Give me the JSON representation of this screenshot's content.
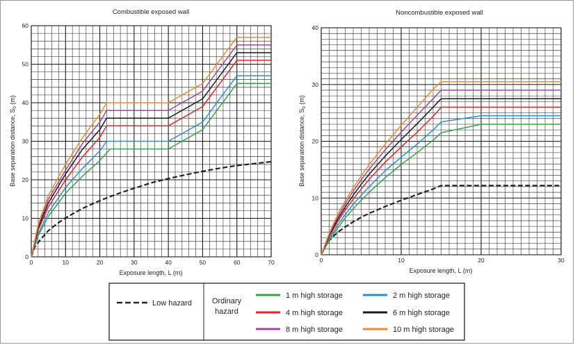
{
  "colors": {
    "green": "#3aa04a",
    "blue": "#2a8fd0",
    "red": "#e0262b",
    "black": "#1a1a1a",
    "purple": "#9b4a9b",
    "orange": "#f08a2c",
    "low": "#222222",
    "grid": "#1a1a1a"
  },
  "chart_data": [
    {
      "type": "line",
      "title": "Combustible exposed wall",
      "xlabel": "Exposure length, L (m)",
      "ylabel_main": "Base separation distance, S",
      "ylabel_sub": "0",
      "ylabel_tail": " (m)",
      "xlim": [
        0,
        70
      ],
      "ylim": [
        0,
        60
      ],
      "xticks": [
        "0",
        "10",
        "20",
        "30",
        "40",
        "50",
        "60",
        "70"
      ],
      "yticks": [
        "0",
        "10",
        "20",
        "30",
        "40",
        "50",
        "60"
      ],
      "grid": true,
      "series": [
        {
          "key": "low",
          "dashed": true,
          "x": [
            0,
            1,
            2.5,
            5,
            7.5,
            10,
            15,
            20,
            25,
            30,
            35,
            40,
            45,
            50,
            55,
            60,
            65,
            70
          ],
          "y": [
            0,
            2.5,
            4.3,
            6.8,
            8.6,
            10.1,
            12.6,
            14.6,
            16.3,
            17.8,
            19.2,
            20.3,
            21.3,
            22.2,
            23.0,
            23.7,
            24.2,
            24.7
          ]
        },
        {
          "key": "green",
          "x": [
            0,
            2,
            5,
            10,
            15,
            20,
            23,
            40,
            50,
            60,
            70
          ],
          "y": [
            0,
            5.5,
            10.5,
            16.5,
            21,
            25,
            28,
            28,
            33,
            45,
            45
          ]
        },
        {
          "key": "blue",
          "x": [
            0,
            2,
            5,
            10,
            15,
            20,
            22,
            40,
            50,
            60,
            70
          ],
          "y": [
            0,
            6,
            11.5,
            18,
            23,
            27.5,
            30,
            30,
            35,
            47,
            47
          ]
        },
        {
          "key": "red",
          "x": [
            0,
            2,
            5,
            10,
            15,
            20,
            22,
            40,
            50,
            60,
            70
          ],
          "y": [
            0,
            7,
            13,
            20,
            26,
            31,
            34,
            34,
            39,
            51,
            51
          ]
        },
        {
          "key": "black",
          "x": [
            0,
            2,
            5,
            10,
            15,
            20,
            22,
            40,
            50,
            60,
            70
          ],
          "y": [
            0,
            7.5,
            14,
            21.5,
            28,
            33,
            36,
            36,
            41,
            53,
            53
          ]
        },
        {
          "key": "purple",
          "x": [
            0,
            2,
            5,
            10,
            15,
            20,
            22,
            40,
            50,
            60,
            70
          ],
          "y": [
            0,
            8,
            15,
            22.5,
            29.5,
            35,
            38,
            38,
            43,
            55,
            55
          ]
        },
        {
          "key": "orange",
          "x": [
            0,
            2,
            5,
            10,
            15,
            20,
            22,
            40,
            50,
            60,
            70
          ],
          "y": [
            0,
            8.5,
            16,
            24,
            31,
            37,
            40,
            40,
            45,
            57,
            57
          ]
        }
      ]
    },
    {
      "type": "line",
      "title": "Noncombustible exposed wall",
      "xlabel": "Exposure length, L (m)",
      "ylabel_main": "Base separation distance, S",
      "ylabel_sub": "0",
      "ylabel_tail": " (m)",
      "xlim": [
        0,
        30
      ],
      "ylim": [
        0,
        40
      ],
      "xticks": [
        "0",
        "10",
        "20",
        "30"
      ],
      "yticks": [
        "0",
        "10",
        "20",
        "30",
        "40"
      ],
      "grid": true,
      "series": [
        {
          "key": "low",
          "dashed": true,
          "x": [
            0,
            0.5,
            1,
            2,
            3,
            4,
            5,
            6,
            8,
            10,
            12,
            14,
            15,
            30
          ],
          "y": [
            0,
            1.5,
            2.5,
            3.9,
            4.9,
            5.8,
            6.6,
            7.3,
            8.5,
            9.6,
            10.6,
            11.6,
            12.2,
            12.2
          ]
        },
        {
          "key": "green",
          "x": [
            0,
            1,
            2,
            3,
            4,
            5,
            6,
            8,
            10,
            12,
            14,
            15,
            20,
            30
          ],
          "y": [
            0,
            2.5,
            4.6,
            6.5,
            8.1,
            9.6,
            11,
            13.6,
            15.9,
            18,
            20.2,
            21.5,
            23,
            23
          ]
        },
        {
          "key": "blue",
          "x": [
            0,
            1,
            2,
            3,
            4,
            5,
            6,
            8,
            10,
            12,
            14,
            15,
            20,
            30
          ],
          "y": [
            0,
            2.8,
            5.1,
            7.1,
            8.9,
            10.5,
            12,
            14.8,
            17.2,
            19.5,
            22,
            23.4,
            24.5,
            24.5
          ]
        },
        {
          "key": "red",
          "x": [
            0,
            1,
            2,
            3,
            4,
            5,
            6,
            8,
            10,
            12,
            14,
            15,
            30
          ],
          "y": [
            0,
            3.2,
            5.7,
            7.9,
            9.8,
            11.6,
            13.3,
            16.3,
            19,
            21.6,
            24.4,
            26,
            26
          ]
        },
        {
          "key": "black",
          "x": [
            0,
            1,
            2,
            3,
            4,
            5,
            6,
            8,
            10,
            12,
            14,
            15,
            30
          ],
          "y": [
            0,
            3.4,
            6.1,
            8.4,
            10.5,
            12.4,
            14.2,
            17.4,
            20.3,
            23.1,
            26,
            27.5,
            27.5
          ]
        },
        {
          "key": "purple",
          "x": [
            0,
            1,
            2,
            3,
            4,
            5,
            6,
            8,
            10,
            12,
            14,
            15,
            30
          ],
          "y": [
            0,
            3.6,
            6.5,
            9,
            11.2,
            13.2,
            15.1,
            18.5,
            21.6,
            24.6,
            27.5,
            29,
            29
          ]
        },
        {
          "key": "orange",
          "x": [
            0,
            1,
            2,
            3,
            4,
            5,
            6,
            8,
            10,
            12,
            14,
            15,
            30
          ],
          "y": [
            0,
            3.8,
            6.9,
            9.5,
            11.8,
            13.9,
            15.9,
            19.5,
            22.8,
            26,
            29.2,
            30.5,
            30.5
          ]
        }
      ]
    }
  ],
  "legend": {
    "low_label": "Low hazard",
    "ordinary_label_1": "Ordinary",
    "ordinary_label_2": "hazard",
    "items": [
      {
        "key": "green",
        "label": "1 m high storage"
      },
      {
        "key": "blue",
        "label": "2 m high storage"
      },
      {
        "key": "red",
        "label": "4 m high storage"
      },
      {
        "key": "black",
        "label": "6 m high storage"
      },
      {
        "key": "purple",
        "label": "8 m high storage"
      },
      {
        "key": "orange",
        "label": "10 m high storage"
      }
    ]
  }
}
